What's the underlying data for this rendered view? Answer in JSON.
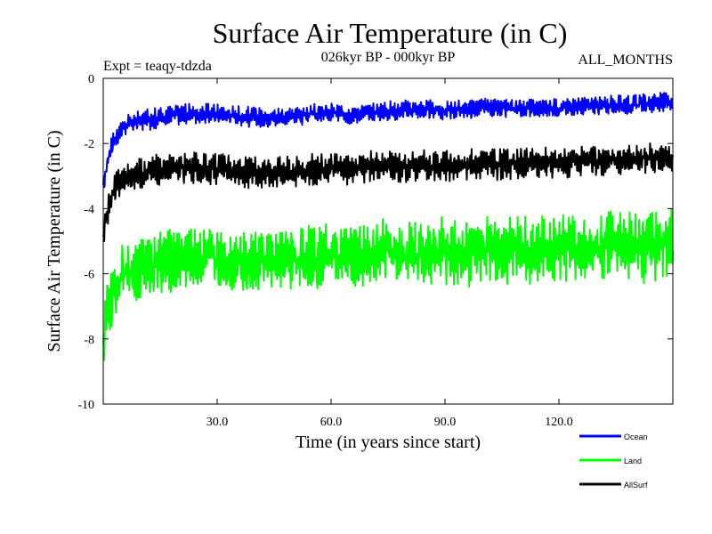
{
  "chart_data": {
    "type": "line",
    "title": "Surface Air Temperature (in C)",
    "subtitle_left": "Expt = teaqy-tdzda",
    "subtitle_center": "026kyr BP - 000kyr BP",
    "subtitle_right": "ALL_MONTHS",
    "xlabel": "Time (in years since start)",
    "ylabel": "Surface Air Temperature (in C)",
    "xlim": [
      0,
      150
    ],
    "ylim": [
      -10,
      0
    ],
    "x_ticks": [
      30,
      60,
      90,
      120
    ],
    "x_tick_labels": [
      "30.0",
      "60.0",
      "90.0",
      "120.0"
    ],
    "y_ticks": [
      0,
      -2,
      -4,
      -6,
      -8,
      -10
    ],
    "y_tick_labels": [
      "0",
      "-2",
      "-4",
      "-6",
      "-8",
      "-10"
    ],
    "series": [
      {
        "name": "Ocean",
        "color": "#0000ff",
        "x": [
          0,
          1,
          2,
          3,
          4,
          5,
          7,
          10,
          15,
          20,
          25,
          30,
          35,
          40,
          45,
          50,
          55,
          60,
          65,
          70,
          75,
          80,
          85,
          90,
          95,
          100,
          105,
          110,
          115,
          120,
          125,
          130,
          135,
          140,
          145,
          150
        ],
        "values": [
          -3.4,
          -2.6,
          -2.1,
          -1.9,
          -1.7,
          -1.5,
          -1.4,
          -1.3,
          -1.2,
          -1.1,
          -1.1,
          -1.1,
          -1.15,
          -1.2,
          -1.2,
          -1.15,
          -1.1,
          -1.05,
          -1.1,
          -1.05,
          -1.0,
          -0.95,
          -0.95,
          -1.0,
          -0.95,
          -0.9,
          -0.95,
          -0.9,
          -0.9,
          -0.9,
          -0.85,
          -0.85,
          -0.8,
          -0.8,
          -0.75,
          -0.7
        ],
        "amplitude": 0.3
      },
      {
        "name": "Land",
        "color": "#00ff00",
        "x": [
          0,
          1,
          2,
          3,
          4,
          5,
          7,
          10,
          15,
          20,
          25,
          30,
          35,
          40,
          45,
          50,
          55,
          60,
          65,
          70,
          75,
          80,
          85,
          90,
          95,
          100,
          105,
          110,
          115,
          120,
          125,
          130,
          135,
          140,
          145,
          150
        ],
        "values": [
          -8.2,
          -7.2,
          -6.8,
          -6.5,
          -6.3,
          -6.1,
          -5.9,
          -5.8,
          -5.7,
          -5.5,
          -5.5,
          -5.5,
          -5.6,
          -5.6,
          -5.6,
          -5.5,
          -5.5,
          -5.4,
          -5.5,
          -5.4,
          -5.3,
          -5.4,
          -5.3,
          -5.3,
          -5.4,
          -5.3,
          -5.3,
          -5.2,
          -5.3,
          -5.2,
          -5.3,
          -5.2,
          -5.1,
          -5.2,
          -5.2,
          -5.0
        ],
        "amplitude": 1.0
      },
      {
        "name": "AllSurf",
        "color": "#000000",
        "x": [
          0,
          1,
          2,
          3,
          4,
          5,
          7,
          10,
          15,
          20,
          25,
          30,
          35,
          40,
          45,
          50,
          55,
          60,
          65,
          70,
          75,
          80,
          85,
          90,
          95,
          100,
          105,
          110,
          115,
          120,
          125,
          130,
          135,
          140,
          145,
          150
        ],
        "values": [
          -5.0,
          -4.1,
          -3.7,
          -3.4,
          -3.2,
          -3.1,
          -3.0,
          -2.9,
          -2.8,
          -2.75,
          -2.75,
          -2.8,
          -2.85,
          -2.9,
          -2.85,
          -2.85,
          -2.8,
          -2.75,
          -2.8,
          -2.7,
          -2.7,
          -2.7,
          -2.65,
          -2.7,
          -2.65,
          -2.6,
          -2.65,
          -2.6,
          -2.6,
          -2.6,
          -2.55,
          -2.55,
          -2.5,
          -2.5,
          -2.45,
          -2.4
        ],
        "amplitude": 0.45
      }
    ],
    "legend": [
      {
        "label": "Ocean",
        "color": "#0000ff"
      },
      {
        "label": "Land",
        "color": "#00ff00"
      },
      {
        "label": "AllSurf",
        "color": "#000000"
      }
    ],
    "legend_position": "bottom-right"
  }
}
